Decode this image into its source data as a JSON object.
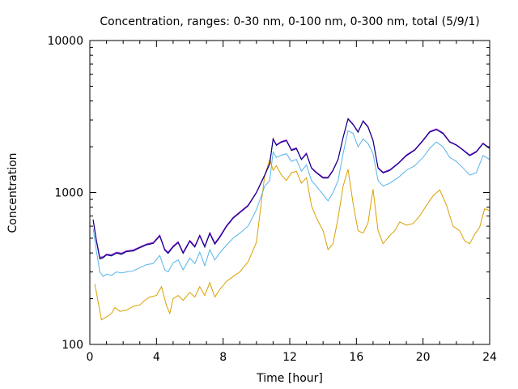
{
  "chart_data": {
    "type": "line",
    "title": "Concentration, ranges: 0-30 nm, 0-100 nm, 0-300 nm, total (5/9/1)",
    "xlabel": "Time [hour]",
    "ylabel": "Concentration",
    "xlim": [
      0,
      24
    ],
    "ylim": [
      100,
      10000
    ],
    "yscale": "log",
    "grid": false,
    "legend": "none",
    "xticks": [
      0,
      4,
      8,
      12,
      16,
      20,
      24
    ],
    "yticks": [
      100,
      1000,
      10000
    ],
    "xtick_labels": [
      "0",
      "4",
      "8",
      "12",
      "16",
      "20",
      "24"
    ],
    "ytick_labels": [
      "100",
      "1000",
      "10000"
    ],
    "series": [
      {
        "color": "#d9a000",
        "x": [
          0.3,
          0.5,
          0.7,
          1.0,
          1.3,
          1.5,
          1.8,
          2.2,
          2.6,
          3.0,
          3.3,
          3.6,
          4.0,
          4.3,
          4.6,
          4.8,
          5.0,
          5.3,
          5.6,
          6.0,
          6.3,
          6.6,
          6.9,
          7.2,
          7.5,
          7.8,
          8.2,
          8.6,
          9.0,
          9.5,
          10.0,
          10.5,
          10.8,
          11.0,
          11.2,
          11.5,
          11.8,
          12.1,
          12.4,
          12.7,
          13.0,
          13.3,
          13.6,
          14.0,
          14.3,
          14.6,
          14.9,
          15.2,
          15.5,
          15.8,
          16.1,
          16.4,
          16.7,
          17.0,
          17.3,
          17.6,
          18.0,
          18.3,
          18.6,
          19.0,
          19.4,
          19.8,
          20.2,
          20.6,
          21.0,
          21.4,
          21.8,
          22.2,
          22.5,
          22.8,
          23.1,
          23.4,
          23.7,
          24.0
        ],
        "values": [
          250,
          190,
          145,
          152,
          160,
          175,
          165,
          168,
          178,
          182,
          195,
          205,
          210,
          240,
          180,
          160,
          200,
          210,
          195,
          220,
          205,
          240,
          210,
          255,
          205,
          230,
          260,
          280,
          300,
          350,
          470,
          1300,
          1650,
          1400,
          1500,
          1300,
          1200,
          1350,
          1380,
          1150,
          1250,
          820,
          680,
          560,
          420,
          460,
          680,
          1100,
          1420,
          850,
          560,
          540,
          630,
          1050,
          560,
          460,
          520,
          560,
          640,
          610,
          625,
          700,
          820,
          950,
          1040,
          830,
          600,
          560,
          480,
          460,
          530,
          590,
          780,
          760
        ]
      },
      {
        "color": "#56b4e9",
        "x": [
          0.2,
          0.4,
          0.6,
          0.8,
          1.0,
          1.3,
          1.6,
          1.9,
          2.2,
          2.6,
          3.0,
          3.4,
          3.8,
          4.2,
          4.5,
          4.7,
          5.0,
          5.3,
          5.6,
          6.0,
          6.3,
          6.6,
          6.9,
          7.2,
          7.5,
          7.8,
          8.2,
          8.6,
          9.0,
          9.5,
          10.0,
          10.5,
          10.8,
          11.0,
          11.2,
          11.5,
          11.8,
          12.1,
          12.4,
          12.7,
          13.0,
          13.3,
          13.6,
          14.0,
          14.3,
          14.6,
          14.9,
          15.2,
          15.5,
          15.8,
          16.1,
          16.4,
          16.7,
          17.0,
          17.3,
          17.6,
          18.0,
          18.5,
          19.0,
          19.5,
          20.0,
          20.4,
          20.8,
          21.2,
          21.6,
          22.0,
          22.4,
          22.8,
          23.2,
          23.6,
          24.0
        ],
        "values": [
          580,
          410,
          300,
          280,
          290,
          285,
          300,
          295,
          300,
          305,
          320,
          335,
          340,
          385,
          310,
          300,
          345,
          360,
          310,
          370,
          340,
          405,
          330,
          420,
          360,
          400,
          450,
          500,
          540,
          600,
          770,
          1100,
          1200,
          1850,
          1700,
          1760,
          1800,
          1600,
          1650,
          1380,
          1520,
          1200,
          1100,
          970,
          880,
          1000,
          1200,
          1800,
          2550,
          2450,
          2000,
          2250,
          2100,
          1800,
          1200,
          1100,
          1150,
          1250,
          1400,
          1500,
          1700,
          1950,
          2150,
          2000,
          1700,
          1600,
          1450,
          1300,
          1350,
          1750,
          1650
        ]
      },
      {
        "color": "#009e73",
        "x": [
          0.2,
          0.4,
          0.6,
          0.8,
          1.0,
          1.3,
          1.6,
          1.9,
          2.2,
          2.6,
          3.0,
          3.4,
          3.8,
          4.2,
          4.5,
          4.7,
          5.0,
          5.3,
          5.6,
          6.0,
          6.3,
          6.6,
          6.9,
          7.2,
          7.5,
          7.8,
          8.2,
          8.6,
          9.0,
          9.5,
          10.0,
          10.5,
          10.8,
          11.0,
          11.2,
          11.5,
          11.8,
          12.1,
          12.4,
          12.7,
          13.0,
          13.3,
          13.6,
          14.0,
          14.3,
          14.6,
          14.9,
          15.2,
          15.5,
          15.8,
          16.1,
          16.4,
          16.7,
          17.0,
          17.3,
          17.6,
          18.0,
          18.5,
          19.0,
          19.5,
          20.0,
          20.4,
          20.8,
          21.2,
          21.6,
          22.0,
          22.4,
          22.8,
          23.2,
          23.6,
          24.0
        ],
        "values": [
          660,
          480,
          370,
          375,
          390,
          385,
          400,
          395,
          410,
          415,
          435,
          455,
          465,
          520,
          420,
          400,
          440,
          470,
          400,
          480,
          440,
          520,
          440,
          540,
          460,
          510,
          600,
          680,
          740,
          820,
          1000,
          1300,
          1550,
          2250,
          2050,
          2150,
          2200,
          1900,
          1950,
          1650,
          1800,
          1450,
          1350,
          1250,
          1250,
          1400,
          1650,
          2300,
          3050,
          2800,
          2500,
          2950,
          2700,
          2200,
          1450,
          1350,
          1400,
          1550,
          1750,
          1900,
          2200,
          2500,
          2600,
          2450,
          2150,
          2050,
          1900,
          1750,
          1850,
          2100,
          1950
        ]
      },
      {
        "color": "#9400d3",
        "x": [
          0.2,
          0.4,
          0.6,
          0.8,
          1.0,
          1.3,
          1.6,
          1.9,
          2.2,
          2.6,
          3.0,
          3.4,
          3.8,
          4.2,
          4.5,
          4.7,
          5.0,
          5.3,
          5.6,
          6.0,
          6.3,
          6.6,
          6.9,
          7.2,
          7.5,
          7.8,
          8.2,
          8.6,
          9.0,
          9.5,
          10.0,
          10.5,
          10.8,
          11.0,
          11.2,
          11.5,
          11.8,
          12.1,
          12.4,
          12.7,
          13.0,
          13.3,
          13.6,
          14.0,
          14.3,
          14.6,
          14.9,
          15.2,
          15.5,
          15.8,
          16.1,
          16.4,
          16.7,
          17.0,
          17.3,
          17.6,
          18.0,
          18.5,
          19.0,
          19.5,
          20.0,
          20.4,
          20.8,
          21.2,
          21.6,
          22.0,
          22.4,
          22.8,
          23.2,
          23.6,
          24.0
        ],
        "values": [
          665,
          485,
          375,
          378,
          393,
          390,
          405,
          398,
          413,
          418,
          438,
          458,
          468,
          524,
          424,
          404,
          444,
          474,
          404,
          484,
          444,
          524,
          444,
          545,
          465,
          515,
          605,
          685,
          745,
          826,
          1005,
          1310,
          1560,
          2265,
          2065,
          2165,
          2215,
          1915,
          1965,
          1660,
          1815,
          1460,
          1360,
          1260,
          1260,
          1410,
          1660,
          2315,
          3070,
          2820,
          2515,
          2970,
          2720,
          2215,
          1460,
          1360,
          1410,
          1560,
          1765,
          1915,
          2215,
          2520,
          2620,
          2470,
          2165,
          2065,
          1915,
          1765,
          1865,
          2115,
          1965
        ]
      },
      {
        "color": "#00007f",
        "x": [
          0.2,
          0.4,
          0.6,
          0.8,
          1.0,
          1.3,
          1.6,
          1.9,
          2.2,
          2.6,
          3.0,
          3.4,
          3.8,
          4.2,
          4.5,
          4.7,
          5.0,
          5.3,
          5.6,
          6.0,
          6.3,
          6.6,
          6.9,
          7.2,
          7.5,
          7.8,
          8.2,
          8.6,
          9.0,
          9.5,
          10.0,
          10.5,
          10.8,
          11.0,
          11.2,
          11.5,
          11.8,
          12.1,
          12.4,
          12.7,
          13.0,
          13.3,
          13.6,
          14.0,
          14.3,
          14.6,
          14.9,
          15.2,
          15.5,
          15.8,
          16.1,
          16.4,
          16.7,
          17.0,
          17.3,
          17.6,
          18.0,
          18.5,
          19.0,
          19.5,
          20.0,
          20.4,
          20.8,
          21.2,
          21.6,
          22.0,
          22.4,
          22.8,
          23.2,
          23.6,
          24.0
        ],
        "values": [
          655,
          475,
          365,
          372,
          388,
          382,
          398,
          392,
          408,
          412,
          432,
          452,
          462,
          516,
          417,
          397,
          437,
          467,
          397,
          477,
          437,
          517,
          437,
          536,
          456,
          506,
          596,
          676,
          736,
          815,
          995,
          1295,
          1545,
          2240,
          2040,
          2140,
          2190,
          1890,
          1940,
          1645,
          1790,
          1445,
          1345,
          1245,
          1245,
          1395,
          1645,
          2290,
          3040,
          2790,
          2490,
          2940,
          2690,
          2190,
          1445,
          1345,
          1395,
          1545,
          1745,
          1895,
          2195,
          2490,
          2590,
          2440,
          2145,
          2045,
          1895,
          1745,
          1845,
          2095,
          1945
        ]
      }
    ]
  }
}
